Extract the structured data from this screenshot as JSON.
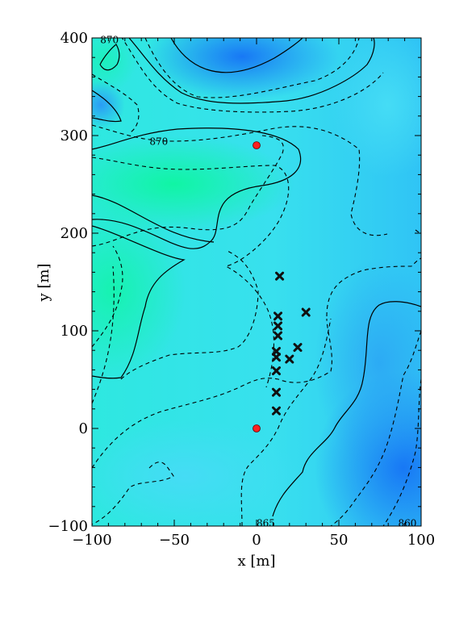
{
  "chart_data": {
    "type": "heatmap",
    "title": "",
    "xlabel": "x [m]",
    "ylabel": "y [m]",
    "xlim": [
      -100,
      100
    ],
    "ylim": [
      -100,
      400
    ],
    "x_ticks": [
      -100,
      -50,
      0,
      50,
      100
    ],
    "y_ticks": [
      -100,
      0,
      100,
      200,
      300,
      400
    ],
    "x_tick_labels": [
      "−100",
      "−50",
      "0",
      "50",
      "100"
    ],
    "y_tick_labels": [
      "−100",
      "0",
      "100",
      "200",
      "300",
      "400"
    ],
    "grid": false,
    "legend": "none",
    "colormap": [
      "#1e7cf5",
      "#3fd8f5",
      "#10f5a8"
    ],
    "contour_labels": [
      {
        "text": "870",
        "x": -95,
        "y": 398
      },
      {
        "text": "870",
        "x": -65,
        "y": 294
      },
      {
        "text": "865",
        "x": 0,
        "y": -97
      },
      {
        "text": "860",
        "x": 86,
        "y": -97
      }
    ],
    "markers": {
      "circles": {
        "color": "#ff2020",
        "points": [
          [
            0,
            290
          ],
          [
            0,
            0
          ]
        ]
      },
      "crosses": {
        "color": "#111111",
        "points": [
          [
            14,
            156
          ],
          [
            13,
            115
          ],
          [
            13,
            105
          ],
          [
            13,
            95
          ],
          [
            30,
            119
          ],
          [
            12,
            79
          ],
          [
            12,
            73
          ],
          [
            25,
            83
          ],
          [
            20,
            71
          ],
          [
            12,
            59
          ],
          [
            12,
            37
          ],
          [
            12,
            18
          ]
        ]
      }
    }
  }
}
